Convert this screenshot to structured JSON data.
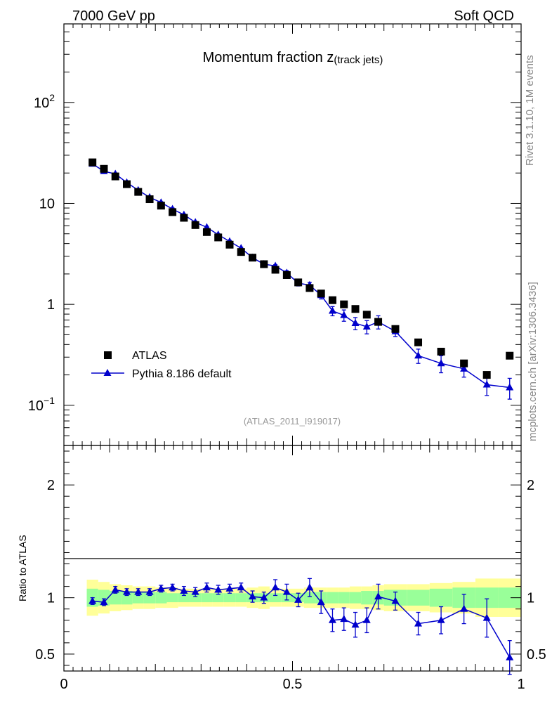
{
  "header": {
    "beam_label": "7000 GeV pp",
    "process_label": "Soft QCD",
    "side_info": "Rivet 3.1.10,  1M events",
    "source_note": "mcplots.cern.ch [arXiv:1306.3436]"
  },
  "chart_data": [
    {
      "type": "scatter",
      "panel": "main",
      "title_main": "Momentum fraction z",
      "title_sub": "(track jets)",
      "analysis_id": "(ATLAS_2011_I919017)",
      "xlabel": "",
      "ylabel": "",
      "xlim": [
        0,
        1
      ],
      "ylim": [
        0.04,
        600
      ],
      "yscale": "log",
      "y_tick_labels": [
        {
          "value": 0.1,
          "base": "10",
          "exp": "−1"
        },
        {
          "value": 1,
          "base": "1",
          "exp": ""
        },
        {
          "value": 10,
          "base": "10",
          "exp": ""
        },
        {
          "value": 100,
          "base": "10",
          "exp": "2"
        }
      ],
      "legend_position": "lower-left",
      "series": [
        {
          "name": "ATLAS",
          "marker": "square",
          "color": "#000000",
          "x": [
            0.0625,
            0.0875,
            0.1125,
            0.1375,
            0.1625,
            0.1875,
            0.2125,
            0.2375,
            0.2625,
            0.2875,
            0.3125,
            0.3375,
            0.3625,
            0.3875,
            0.4125,
            0.4375,
            0.4625,
            0.4875,
            0.5125,
            0.5375,
            0.5625,
            0.5875,
            0.6125,
            0.6375,
            0.6625,
            0.6875,
            0.725,
            0.775,
            0.825,
            0.875,
            0.925,
            0.975
          ],
          "values": [
            25.5,
            22.0,
            18.5,
            15.5,
            13.0,
            11.0,
            9.5,
            8.2,
            7.2,
            6.1,
            5.2,
            4.6,
            3.9,
            3.3,
            2.9,
            2.5,
            2.2,
            1.95,
            1.65,
            1.45,
            1.28,
            1.1,
            1.0,
            0.9,
            0.79,
            0.67,
            0.57,
            0.42,
            0.34,
            0.26,
            0.2,
            0.31
          ]
        },
        {
          "name": "Pythia 8.186 default",
          "marker": "triangle",
          "color": "#0000cc",
          "x": [
            0.0625,
            0.0875,
            0.1125,
            0.1375,
            0.1625,
            0.1875,
            0.2125,
            0.2375,
            0.2625,
            0.2875,
            0.3125,
            0.3375,
            0.3625,
            0.3875,
            0.4125,
            0.4375,
            0.4625,
            0.4875,
            0.5125,
            0.5375,
            0.5625,
            0.5875,
            0.6125,
            0.6375,
            0.6625,
            0.6875,
            0.725,
            0.775,
            0.825,
            0.875,
            0.925,
            0.975
          ],
          "values": [
            24.6,
            20.8,
            19.6,
            16.1,
            13.5,
            11.5,
            10.2,
            8.8,
            7.7,
            6.5,
            5.8,
            4.9,
            4.2,
            3.6,
            2.9,
            2.5,
            2.4,
            2.05,
            1.62,
            1.55,
            1.23,
            0.86,
            0.78,
            0.65,
            0.6,
            0.67,
            0.54,
            0.31,
            0.26,
            0.23,
            0.16,
            0.15
          ],
          "errors": [
            0.5,
            0.4,
            0.4,
            0.3,
            0.3,
            0.25,
            0.2,
            0.2,
            0.15,
            0.15,
            0.12,
            0.1,
            0.1,
            0.08,
            0.07,
            0.07,
            0.07,
            0.1,
            0.1,
            0.1,
            0.1,
            0.09,
            0.1,
            0.09,
            0.09,
            0.1,
            0.06,
            0.05,
            0.05,
            0.04,
            0.035,
            0.035
          ]
        }
      ]
    },
    {
      "type": "scatter",
      "panel": "ratio",
      "xlabel": "",
      "ylabel": "Ratio to ATLAS",
      "xlim": [
        0,
        1
      ],
      "ylim": [
        0.35,
        2.35
      ],
      "x_tick_labels": [
        {
          "value": 0,
          "label": "0"
        },
        {
          "value": 0.5,
          "label": "0.5"
        },
        {
          "value": 1,
          "label": "1"
        }
      ],
      "y_tick_labels": [
        {
          "value": 0.5,
          "label": "0.5"
        },
        {
          "value": 1,
          "label": "1"
        },
        {
          "value": 2,
          "label": "2"
        }
      ],
      "reference_line": 1,
      "band_x_edges": [
        0.05,
        0.075,
        0.1,
        0.125,
        0.15,
        0.175,
        0.2,
        0.225,
        0.25,
        0.275,
        0.3,
        0.325,
        0.35,
        0.375,
        0.4,
        0.425,
        0.45,
        0.475,
        0.5,
        0.525,
        0.55,
        0.575,
        0.6,
        0.625,
        0.65,
        0.675,
        0.7,
        0.75,
        0.8,
        0.85,
        0.9,
        0.95,
        1.0
      ],
      "band_inner": [
        0.08,
        0.07,
        0.06,
        0.06,
        0.05,
        0.05,
        0.05,
        0.04,
        0.04,
        0.04,
        0.04,
        0.04,
        0.04,
        0.04,
        0.04,
        0.04,
        0.04,
        0.04,
        0.04,
        0.05,
        0.05,
        0.05,
        0.05,
        0.05,
        0.06,
        0.06,
        0.07,
        0.07,
        0.08,
        0.09,
        0.09,
        0.09
      ],
      "band_outer": [
        0.16,
        0.14,
        0.12,
        0.11,
        0.1,
        0.1,
        0.09,
        0.09,
        0.08,
        0.08,
        0.08,
        0.08,
        0.08,
        0.08,
        0.09,
        0.1,
        0.08,
        0.08,
        0.08,
        0.09,
        0.09,
        0.09,
        0.09,
        0.1,
        0.1,
        0.11,
        0.12,
        0.12,
        0.13,
        0.14,
        0.17,
        0.17
      ],
      "series": [
        {
          "name": "Pythia 8.186 default",
          "color": "#0000cc",
          "x": [
            0.0625,
            0.0875,
            0.1125,
            0.1375,
            0.1625,
            0.1875,
            0.2125,
            0.2375,
            0.2625,
            0.2875,
            0.3125,
            0.3375,
            0.3625,
            0.3875,
            0.4125,
            0.4375,
            0.4625,
            0.4875,
            0.5125,
            0.5375,
            0.5625,
            0.5875,
            0.6125,
            0.6375,
            0.6625,
            0.6875,
            0.725,
            0.775,
            0.825,
            0.875,
            0.925,
            0.975
          ],
          "values": [
            0.97,
            0.96,
            1.07,
            1.05,
            1.05,
            1.05,
            1.08,
            1.09,
            1.06,
            1.05,
            1.09,
            1.07,
            1.08,
            1.09,
            1.01,
            1.0,
            1.09,
            1.05,
            0.98,
            1.09,
            0.96,
            0.8,
            0.81,
            0.76,
            0.8,
            1.01,
            0.97,
            0.77,
            0.8,
            0.9,
            0.82,
            0.47
          ],
          "errors": [
            0.03,
            0.03,
            0.03,
            0.03,
            0.03,
            0.03,
            0.03,
            0.03,
            0.04,
            0.04,
            0.04,
            0.04,
            0.04,
            0.04,
            0.05,
            0.05,
            0.07,
            0.07,
            0.06,
            0.08,
            0.1,
            0.1,
            0.1,
            0.11,
            0.11,
            0.11,
            0.08,
            0.1,
            0.12,
            0.13,
            0.17,
            0.15
          ]
        }
      ]
    }
  ]
}
